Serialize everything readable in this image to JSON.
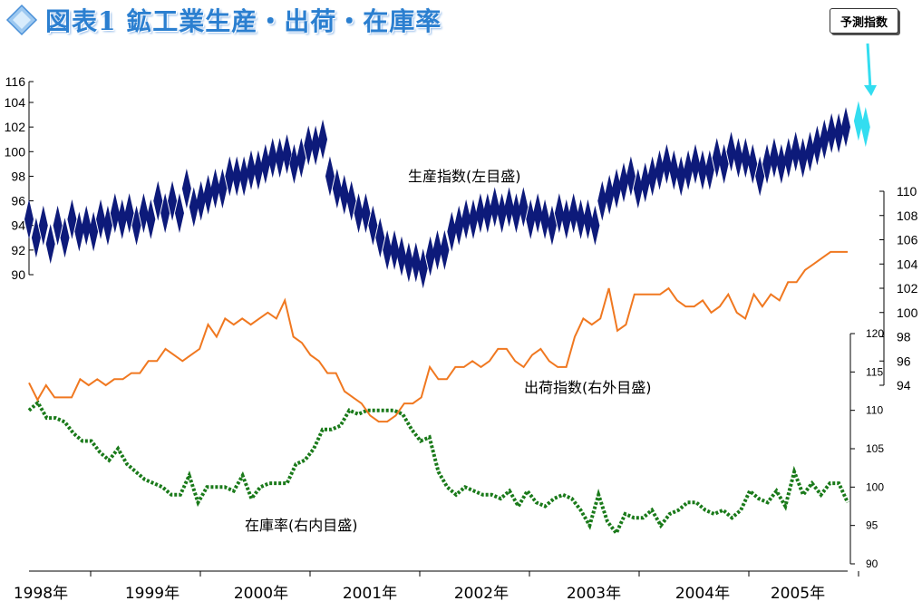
{
  "header": {
    "title": "図表1 鉱工業生産・出荷・在庫率",
    "forecast_badge": "予測指数"
  },
  "labels": {
    "production": "生産指数(左目盛)",
    "shipment": "出荷指数(右外目盛)",
    "inventory": "在庫率(右内目盛)"
  },
  "colors": {
    "production": "#0d1a7a",
    "forecast": "#33ddf0",
    "shipment": "#f07820",
    "inventory": "#1a7a1a",
    "title": "#2b7fd0"
  },
  "chart_data": {
    "type": "line",
    "x_labels": [
      "1998年",
      "1999年",
      "2000年",
      "2001年",
      "2002年",
      "2003年",
      "2004年",
      "2005年"
    ],
    "axes": {
      "left": {
        "series": "production",
        "ylim": [
          90,
          116
        ],
        "ticks": [
          90,
          92,
          94,
          96,
          98,
          100,
          102,
          104,
          116
        ]
      },
      "right_outer": {
        "series": "shipment",
        "ylim": [
          94,
          110
        ],
        "ticks": [
          94,
          96,
          98,
          100,
          102,
          104,
          106,
          108,
          110
        ]
      },
      "right_inner": {
        "series": "inventory",
        "ylim": [
          90,
          120
        ],
        "ticks": [
          90,
          95,
          100,
          105,
          110,
          115,
          120
        ]
      }
    },
    "series": [
      {
        "key": "production",
        "name": "生産指数(左目盛)",
        "marker": "diamond",
        "values": [
          94.5,
          93,
          94,
          92.5,
          94,
          93,
          94.5,
          93.5,
          94,
          93.5,
          94.5,
          94,
          95,
          94.5,
          95,
          94,
          95,
          94.5,
          96,
          95,
          96,
          95,
          97,
          95.5,
          96,
          96.5,
          97,
          97,
          98,
          98,
          98,
          98.5,
          98.5,
          99,
          99.5,
          99.5,
          99.8,
          99,
          99.5,
          100.5,
          100.5,
          101,
          98,
          97,
          96.5,
          96,
          95,
          95,
          94,
          93,
          92,
          92,
          91.5,
          91,
          91,
          90.5,
          91.5,
          92,
          92,
          93.5,
          94,
          94.5,
          94.5,
          95,
          95,
          95.5,
          95,
          95.5,
          95,
          95.5,
          94.5,
          95,
          94.5,
          94,
          95,
          94.5,
          95,
          94.5,
          94.5,
          94,
          96,
          96.5,
          97,
          97.5,
          98,
          97,
          97.5,
          98,
          98.5,
          99,
          98.5,
          98,
          98.5,
          99,
          98.5,
          98.5,
          99.5,
          99,
          100,
          99.5,
          99.5,
          99,
          98,
          99,
          99.5,
          99,
          99.5,
          100,
          99.5,
          100,
          100.5,
          101,
          101.5,
          101.5,
          102
        ],
        "forecast": [
          102.5,
          102
        ]
      },
      {
        "key": "shipment",
        "name": "出荷指数(右外目盛)",
        "values": [
          94.2,
          92.8,
          94,
          93,
          93,
          93,
          94.5,
          94,
          94.5,
          94,
          94.5,
          94.5,
          95,
          95,
          96,
          96,
          97,
          96.5,
          96,
          96.5,
          97,
          99,
          98,
          99.5,
          99,
          99.5,
          99,
          99.5,
          100,
          99.5,
          101,
          98,
          97.5,
          96.5,
          96,
          95,
          95,
          93.5,
          93,
          92.5,
          91.5,
          91,
          91,
          91.5,
          92.5,
          92.5,
          93,
          95.5,
          94.5,
          94.5,
          95.5,
          95.5,
          96,
          95.5,
          96,
          97,
          97,
          96,
          95.5,
          96.5,
          97,
          96,
          95.5,
          95.5,
          98,
          99.5,
          99,
          99.5,
          102,
          98.5,
          99,
          101.5,
          101.5,
          101.5,
          101.5,
          102,
          101,
          100.5,
          100.5,
          101,
          100,
          100.5,
          101.5,
          100,
          99.5,
          101.5,
          100.5,
          101.5,
          101,
          102.5,
          102.5,
          103.5,
          104,
          104.5,
          105,
          105,
          105
        ]
      },
      {
        "key": "inventory",
        "name": "在庫率(右内目盛)",
        "values": [
          110,
          111,
          109,
          109,
          108.5,
          107,
          106,
          106,
          104.5,
          103.5,
          105,
          103,
          102,
          101,
          100.5,
          100,
          99,
          99,
          101.5,
          98,
          100,
          100,
          100,
          99.5,
          101.5,
          98.5,
          100,
          100.5,
          100.5,
          100.5,
          103,
          103.5,
          105,
          107.5,
          107.5,
          108,
          110,
          109.5,
          110,
          110,
          110,
          110,
          109.5,
          107.5,
          106,
          106.5,
          102,
          100,
          99,
          100,
          99.5,
          99,
          99,
          98.5,
          99.5,
          97.5,
          99.5,
          98,
          97.5,
          98.5,
          99,
          98.5,
          97,
          95,
          99,
          95.5,
          94,
          96.5,
          96,
          96,
          97,
          95,
          96.5,
          97,
          98,
          98,
          97,
          96.5,
          97,
          96,
          97,
          99.5,
          98.5,
          98,
          99.5,
          97.5,
          102,
          99,
          100.5,
          99,
          100.5,
          100.5,
          98
        ]
      }
    ]
  }
}
